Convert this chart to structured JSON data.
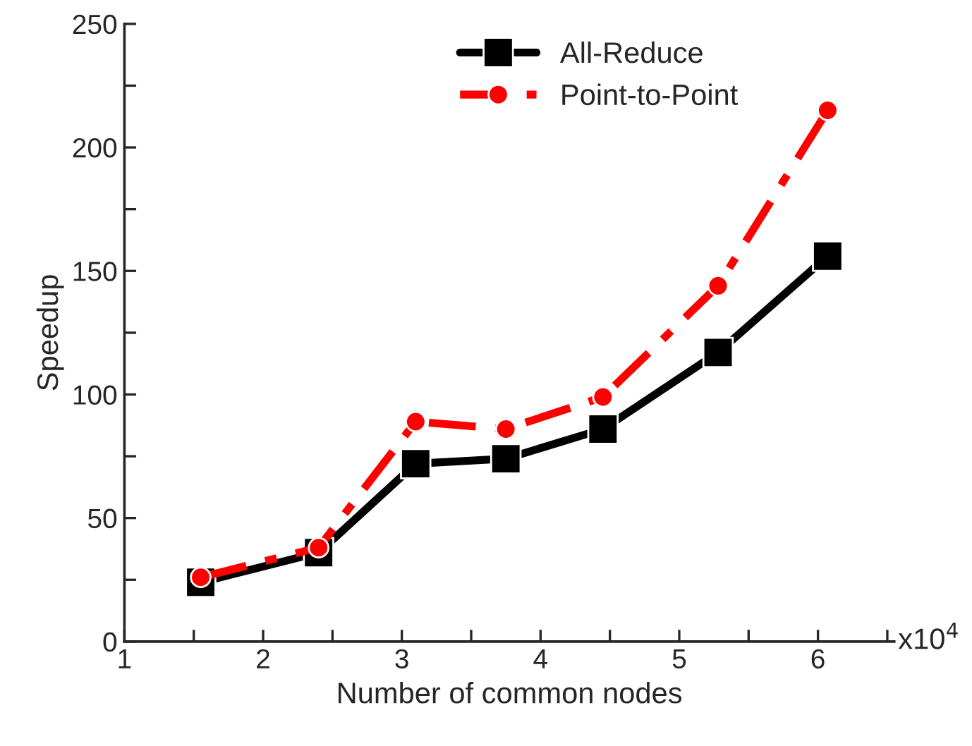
{
  "chart_data": {
    "type": "line",
    "xlabel": "Number of common nodes",
    "ylabel": "Speedup",
    "x": [
      1.55,
      2.4,
      3.1,
      3.75,
      4.45,
      5.28,
      6.07
    ],
    "series": [
      {
        "name": "All-Reduce",
        "color": "#000000",
        "marker": "square",
        "line_style": "solid",
        "values": [
          24,
          36,
          72,
          74,
          86,
          117,
          156
        ]
      },
      {
        "name": "Point-to-Point",
        "color": "#ff0000",
        "marker": "circle",
        "line_style": "dashdot",
        "values": [
          26,
          38,
          89,
          86,
          99,
          144,
          215
        ]
      }
    ],
    "xlim": [
      1,
      6.55
    ],
    "ylim": [
      0,
      250
    ],
    "xticks": [
      1,
      {
        "value": 1.5,
        "label": null
      },
      2,
      {
        "value": 2.5,
        "label": null
      },
      3,
      {
        "value": 3.5,
        "label": null
      },
      4,
      {
        "value": 4.5,
        "label": null
      },
      5,
      {
        "value": 5.5,
        "label": null
      },
      6,
      {
        "value": 6.5,
        "label": null
      }
    ],
    "yticks": [
      0,
      {
        "value": 25,
        "label": null
      },
      50,
      {
        "value": 75,
        "label": null
      },
      100,
      {
        "value": 125,
        "label": null
      },
      150,
      {
        "value": 175,
        "label": null
      },
      200,
      {
        "value": 225,
        "label": null
      },
      250
    ],
    "annotations": [
      "x10$^{4}$"
    ],
    "grid": false,
    "legend": "top right"
  }
}
